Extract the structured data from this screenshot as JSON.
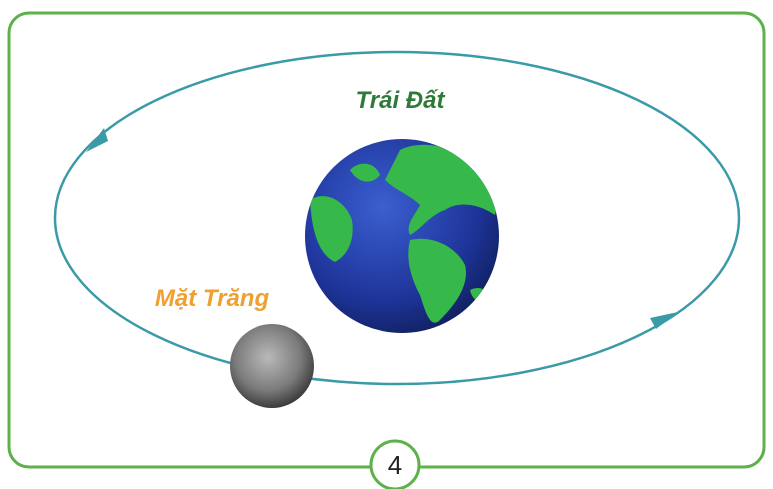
{
  "labels": {
    "earth": "Trái Đất",
    "moon": "Mặt Trăng"
  },
  "figure_number": "4"
}
